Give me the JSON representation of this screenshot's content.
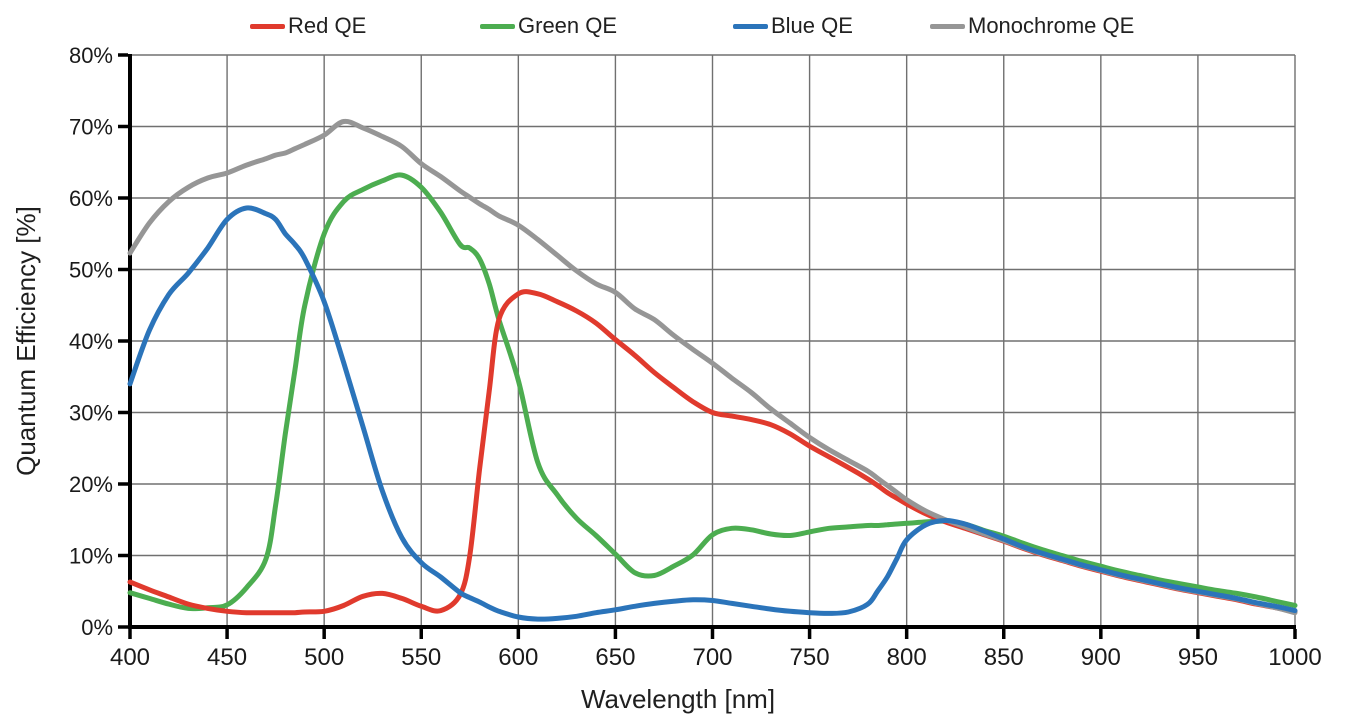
{
  "chart_data": {
    "type": "line",
    "title": "",
    "xlabel": "Wavelength [nm]",
    "ylabel": "Quantum Efficiency [%]",
    "xlim": [
      400,
      1000
    ],
    "ylim": [
      0,
      80
    ],
    "x_ticks": [
      400,
      450,
      500,
      550,
      600,
      650,
      700,
      750,
      800,
      850,
      900,
      950,
      1000
    ],
    "x_tick_labels": [
      "400",
      "450",
      "500",
      "550",
      "600",
      "650",
      "700",
      "750",
      "800",
      "850",
      "900",
      "950",
      "1000"
    ],
    "y_ticks": [
      0,
      10,
      20,
      30,
      40,
      50,
      60,
      70,
      80
    ],
    "y_tick_labels": [
      "0%",
      "10%",
      "20%",
      "30%",
      "40%",
      "50%",
      "60%",
      "70%",
      "80%"
    ],
    "grid": true,
    "legend_position": "top",
    "axis_color": "#000000",
    "gridline_color": "#707070",
    "text_color": "#1f1f1f",
    "x": [
      400,
      410,
      420,
      430,
      440,
      450,
      460,
      470,
      475,
      480,
      485,
      490,
      500,
      510,
      520,
      530,
      540,
      550,
      560,
      570,
      575,
      580,
      585,
      590,
      600,
      610,
      620,
      630,
      640,
      650,
      660,
      670,
      680,
      690,
      700,
      710,
      720,
      730,
      740,
      750,
      760,
      770,
      780,
      785,
      790,
      795,
      800,
      810,
      820,
      830,
      840,
      850,
      860,
      870,
      880,
      890,
      900,
      910,
      920,
      930,
      940,
      950,
      960,
      970,
      980,
      990,
      1000
    ],
    "series": [
      {
        "name": "Red QE",
        "color": "#e03a2d",
        "values": [
          6.3,
          5.2,
          4.2,
          3.2,
          2.6,
          2.2,
          2.0,
          2.0,
          2.0,
          2.0,
          2.0,
          2.1,
          2.2,
          3.0,
          4.3,
          4.7,
          4.0,
          2.9,
          2.3,
          4.5,
          10,
          22,
          33,
          43,
          46.6,
          46.6,
          45.5,
          44.2,
          42.5,
          40.2,
          38.0,
          35.6,
          33.5,
          31.5,
          30.0,
          29.5,
          29.0,
          28.3,
          27.0,
          25.3,
          23.8,
          22.3,
          20.7,
          19.8,
          18.8,
          18.0,
          17.2,
          15.8,
          14.7,
          13.8,
          12.9,
          12.0,
          11.0,
          10.1,
          9.3,
          8.5,
          7.8,
          7.1,
          6.5,
          5.9,
          5.3,
          4.8,
          4.3,
          3.8,
          3.2,
          2.7,
          2.1
        ]
      },
      {
        "name": "Green QE",
        "color": "#4cad50",
        "values": [
          4.8,
          4.0,
          3.2,
          2.6,
          2.7,
          3.1,
          5.5,
          9.5,
          17,
          27,
          36,
          45,
          55,
          59.5,
          61.2,
          62.4,
          63.2,
          61.5,
          58.0,
          53.5,
          53.0,
          51.5,
          48.0,
          43.0,
          34.5,
          23.0,
          18.5,
          15.2,
          12.8,
          10.2,
          7.6,
          7.2,
          8.5,
          10.1,
          12.9,
          13.8,
          13.6,
          13.0,
          12.8,
          13.3,
          13.8,
          14.0,
          14.2,
          14.2,
          14.3,
          14.4,
          14.5,
          14.7,
          14.8,
          14.4,
          13.5,
          12.7,
          11.7,
          10.8,
          10.0,
          9.2,
          8.5,
          7.8,
          7.2,
          6.6,
          6.1,
          5.6,
          5.1,
          4.7,
          4.2,
          3.6,
          3.0
        ]
      },
      {
        "name": "Blue QE",
        "color": "#2b74ba",
        "values": [
          34,
          41.5,
          46.5,
          49.5,
          53,
          57,
          58.6,
          57.8,
          57.0,
          55.0,
          53.5,
          51.5,
          45.5,
          37,
          28,
          19,
          12.5,
          9.0,
          7.0,
          4.8,
          4.1,
          3.5,
          2.8,
          2.2,
          1.4,
          1.1,
          1.2,
          1.5,
          2.0,
          2.4,
          2.9,
          3.3,
          3.6,
          3.8,
          3.7,
          3.3,
          2.9,
          2.5,
          2.2,
          2.0,
          1.9,
          2.1,
          3.2,
          5.0,
          7.0,
          9.6,
          12.2,
          14.3,
          14.9,
          14.4,
          13.4,
          12.3,
          11.2,
          10.3,
          9.5,
          8.7,
          8.0,
          7.3,
          6.7,
          6.1,
          5.5,
          5.0,
          4.5,
          4.0,
          3.4,
          2.9,
          2.3
        ]
      },
      {
        "name": "Monochrome QE",
        "color": "#969696",
        "values": [
          52.3,
          56.5,
          59.5,
          61.5,
          62.8,
          63.5,
          64.6,
          65.5,
          66.0,
          66.3,
          66.9,
          67.5,
          68.8,
          70.7,
          69.8,
          68.6,
          67.2,
          64.8,
          63.0,
          61.0,
          60.1,
          59.2,
          58.4,
          57.5,
          56.2,
          54.2,
          52.0,
          49.8,
          48.0,
          46.8,
          44.5,
          43.0,
          40.8,
          38.8,
          36.9,
          34.8,
          32.8,
          30.5,
          28.5,
          26.5,
          24.8,
          23.3,
          21.8,
          20.8,
          19.8,
          18.8,
          17.8,
          16.2,
          15.0,
          14.0,
          13.0,
          12.1,
          11.1,
          10.2,
          9.4,
          8.6,
          7.9,
          7.2,
          6.6,
          6.0,
          5.4,
          4.9,
          4.4,
          3.9,
          3.3,
          2.7,
          2.0
        ]
      }
    ]
  }
}
